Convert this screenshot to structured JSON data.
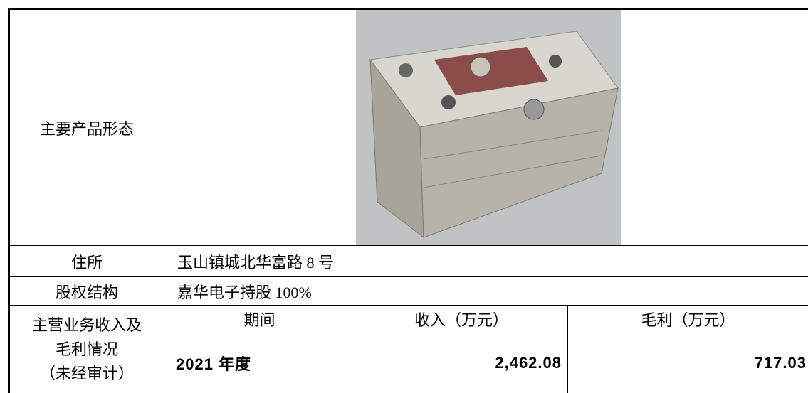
{
  "table": {
    "product_label": "主要产品形态",
    "address_label": "住所",
    "address": "玉山镇城北华富路 8 号",
    "ownership_label": "股权结构",
    "ownership": "嘉华电子持股 100%",
    "revenue_label": [
      "主营业务收入及",
      "毛利情况",
      "（未经审计）"
    ],
    "header": [
      "期间",
      "收入（万元）",
      "毛利（万元）"
    ],
    "rows": [
      [
        "2021 年度",
        "2,462.08",
        "717.03"
      ]
    ]
  }
}
